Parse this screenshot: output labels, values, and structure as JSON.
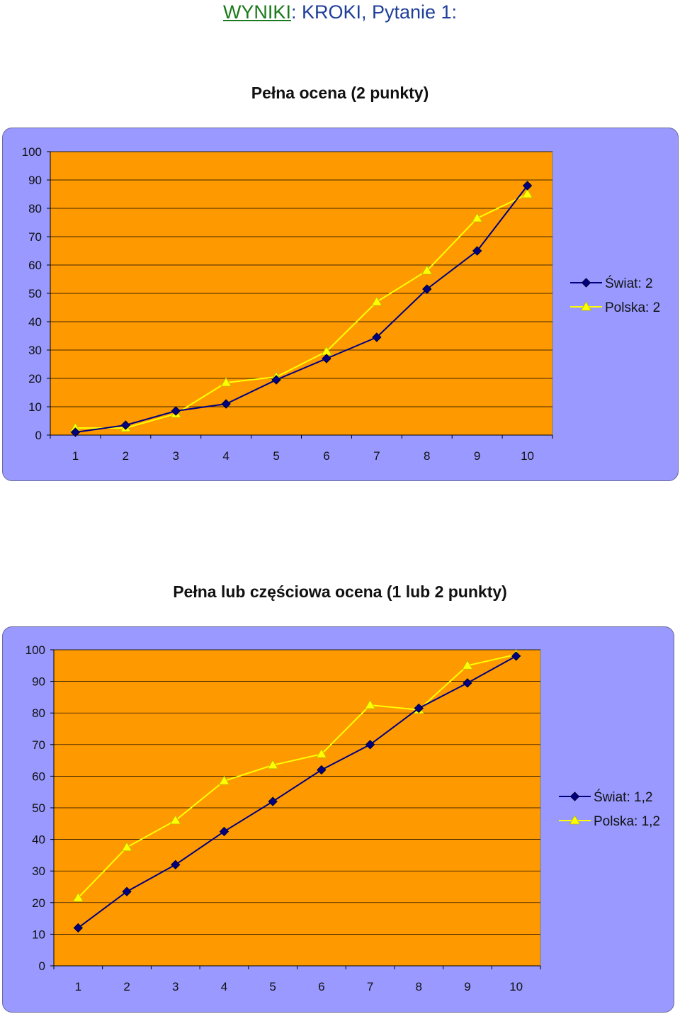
{
  "heading": {
    "prefix": "WYNIKI",
    "suffix": ": KROKI, Pytanie 1:"
  },
  "colors": {
    "plot_bg": "#ff9900",
    "panel_bg": "#9999ff",
    "swiat": "#000080",
    "polska": "#ffff00"
  },
  "chart_data": [
    {
      "type": "line",
      "title": "Pełna ocena (2 punkty)",
      "categories": [
        "1",
        "2",
        "3",
        "4",
        "5",
        "6",
        "7",
        "8",
        "9",
        "10"
      ],
      "series": [
        {
          "name": "Świat: 2",
          "values": [
            1,
            3.5,
            8.5,
            11,
            19.5,
            27,
            34.5,
            51.5,
            65,
            88
          ]
        },
        {
          "name": "Polska: 2",
          "values": [
            2.5,
            2.5,
            7.5,
            18.5,
            20.5,
            29.5,
            47,
            58,
            76.5,
            85
          ]
        }
      ],
      "ylim": [
        0,
        100
      ],
      "yticks": [
        "0",
        "10",
        "20",
        "30",
        "40",
        "50",
        "60",
        "70",
        "80",
        "90",
        "100"
      ],
      "grid": true,
      "legend": "right"
    },
    {
      "type": "line",
      "title": "Pełna lub częściowa ocena (1 lub 2 punkty)",
      "categories": [
        "1",
        "2",
        "3",
        "4",
        "5",
        "6",
        "7",
        "8",
        "9",
        "10"
      ],
      "series": [
        {
          "name": "Świat: 1,2",
          "values": [
            12,
            23.5,
            32,
            42.5,
            52,
            62,
            70,
            81.5,
            89.5,
            98
          ]
        },
        {
          "name": "Polska: 1,2",
          "values": [
            21.5,
            37.5,
            46,
            58.5,
            63.5,
            67,
            82.5,
            81,
            95,
            98.5
          ]
        }
      ],
      "ylim": [
        0,
        100
      ],
      "yticks": [
        "0",
        "10",
        "20",
        "30",
        "40",
        "50",
        "60",
        "70",
        "80",
        "90",
        "100"
      ],
      "grid": true,
      "legend": "right"
    }
  ]
}
